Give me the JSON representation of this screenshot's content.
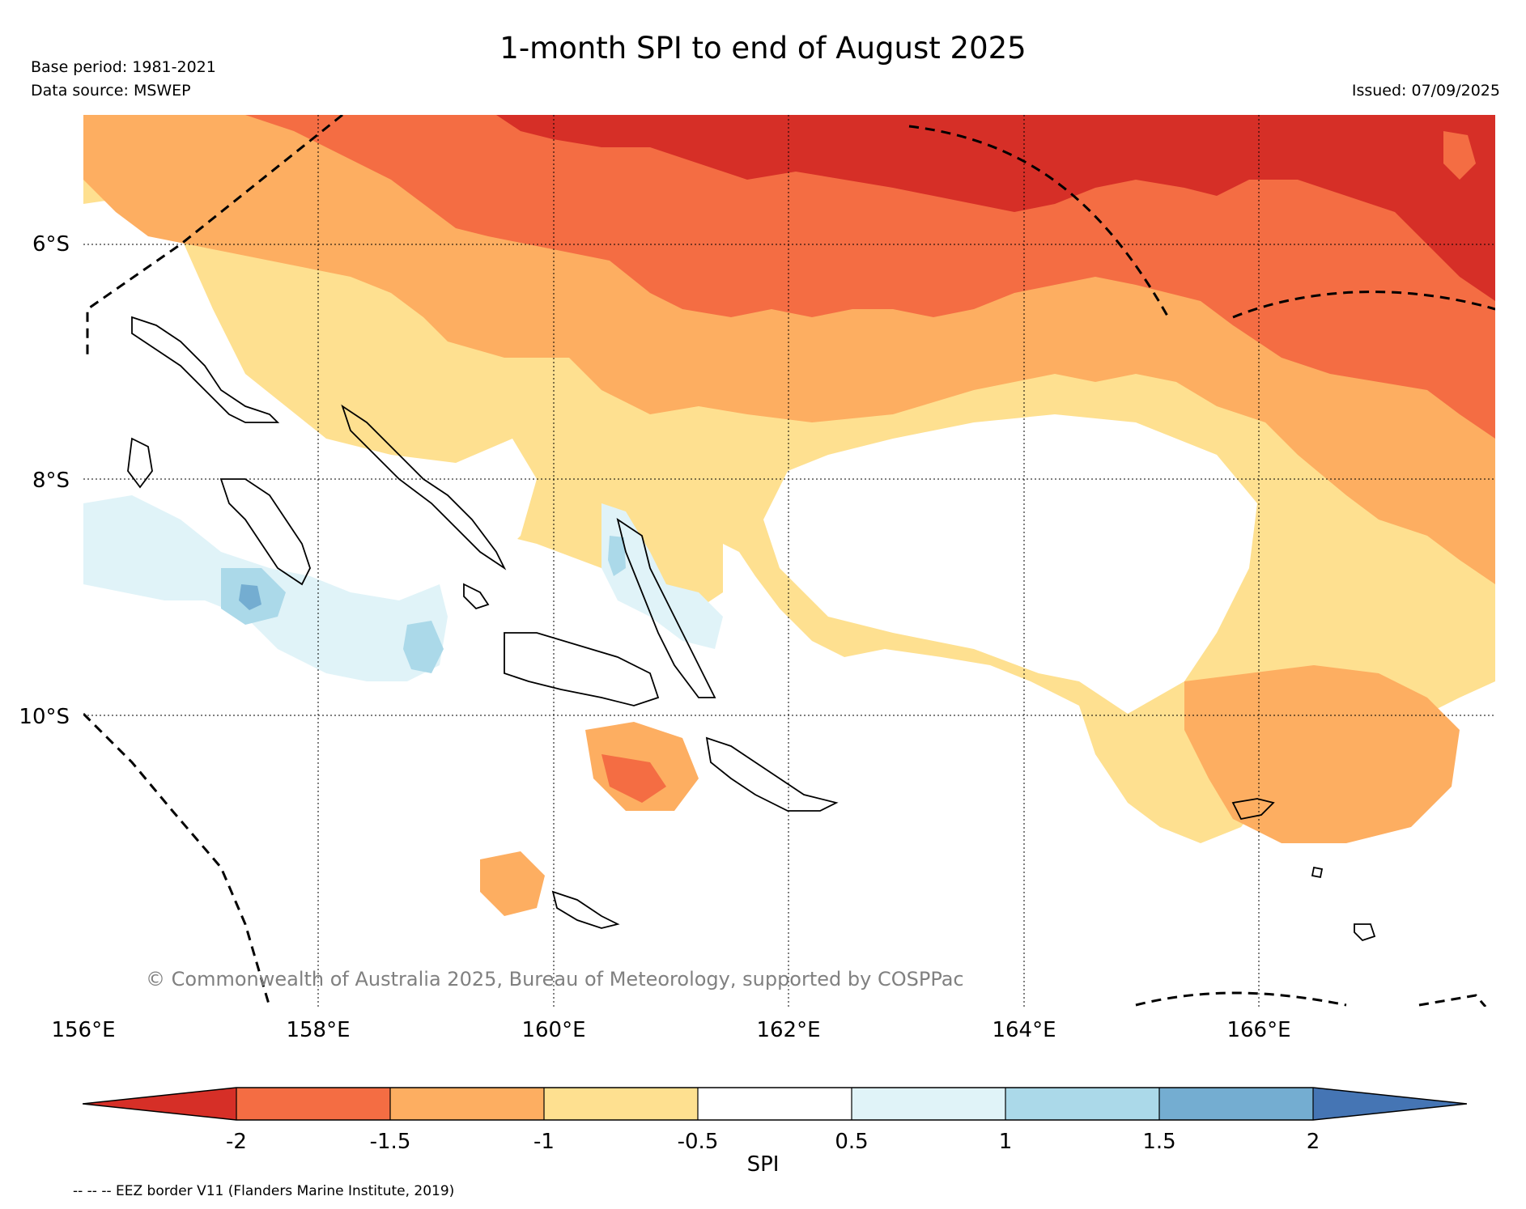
{
  "title": "1-month SPI to end of August 2025",
  "base_period": "Base period: 1981-2021",
  "data_source": "Data source: MSWEP",
  "issued": "Issued: 07/09/2025",
  "copyright": "© Commonwealth of Australia 2025, Bureau of Meteorology, supported by COSPPac",
  "map": {
    "lat_labels": [
      "6°S",
      "8°S",
      "10°S"
    ],
    "lon_labels": [
      "156°E",
      "158°E",
      "160°E",
      "162°E",
      "164°E",
      "166°E"
    ],
    "lon_range": [
      156,
      168
    ],
    "lat_range": [
      -4.9,
      -12.4
    ],
    "region_features": [
      "Solomon Islands"
    ]
  },
  "colorbar": {
    "label": "SPI",
    "ticks": [
      "-2",
      "-1.5",
      "-1",
      "-0.5",
      "0.5",
      "1",
      "1.5",
      "2"
    ],
    "colors": {
      "extreme_dry": "#d62f27",
      "very_dry": "#f46d43",
      "dry": "#fdae61",
      "slightly_dry": "#fee090",
      "normal": "#ffffff",
      "slightly_wet": "#e0f3f8",
      "wet": "#abd9e9",
      "very_wet": "#74add1",
      "extreme_wet": "#4575b4"
    }
  },
  "eez_note": "-- -- -- EEZ border V11 (Flanders Marine Institute, 2019)"
}
